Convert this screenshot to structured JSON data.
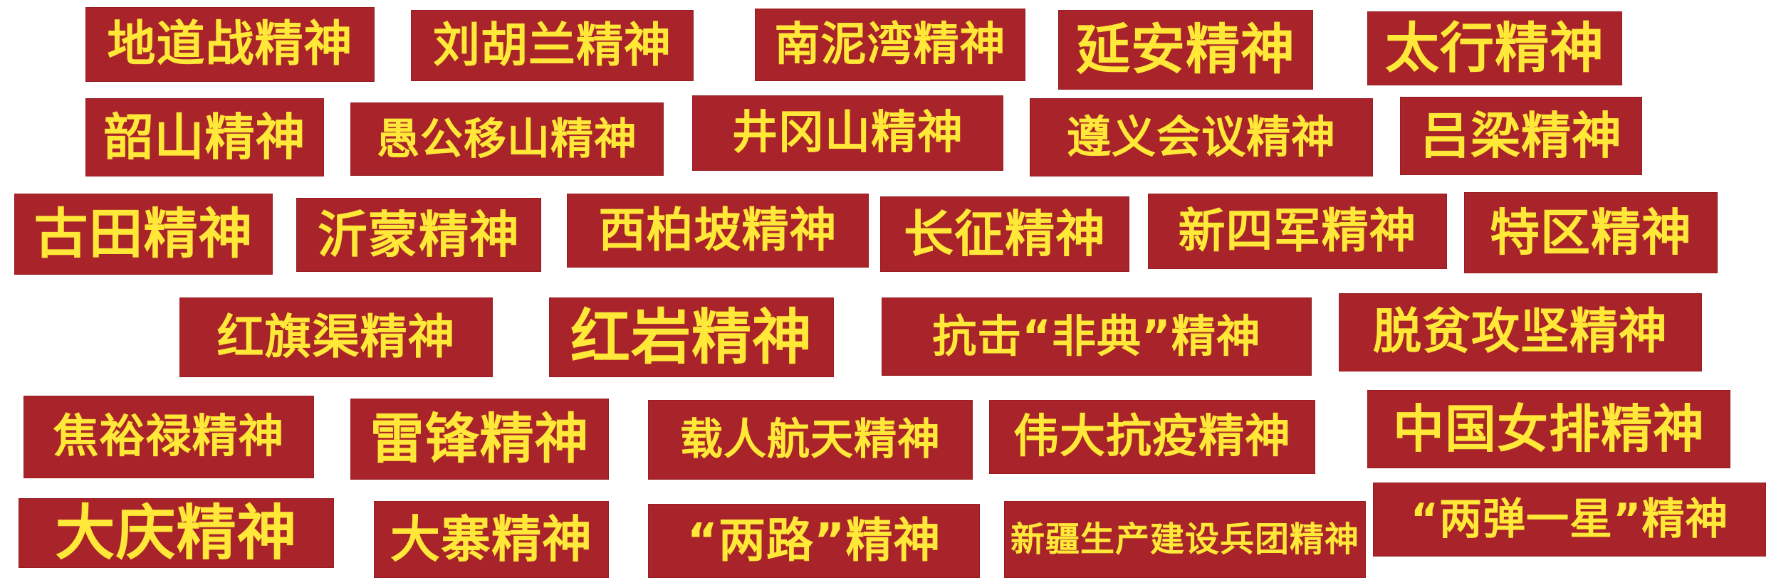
{
  "colors": {
    "banner_bg": "#a8232a",
    "banner_text": "#ffe838",
    "page_bg": "#ffffff"
  },
  "spirits": [
    "地道战精神",
    "刘胡兰精神",
    "南泥湾精神",
    "延安精神",
    "太行精神",
    "韶山精神",
    "愚公移山精神",
    "井冈山精神",
    "遵义会议精神",
    "吕梁精神",
    "古田精神",
    "沂蒙精神",
    "西柏坡精神",
    "长征精神",
    "新四军精神",
    "特区精神",
    "红旗渠精神",
    "红岩精神",
    "抗击“非典”精神",
    "脱贫攻坚精神",
    "焦裕禄精神",
    "雷锋精神",
    "载人航天精神",
    "伟大抗疫精神",
    "中国女排精神",
    "大庆精神",
    "大寨精神",
    "“两路”精神",
    "新疆生产建设兵团精神",
    "“两弹一星”精神"
  ]
}
